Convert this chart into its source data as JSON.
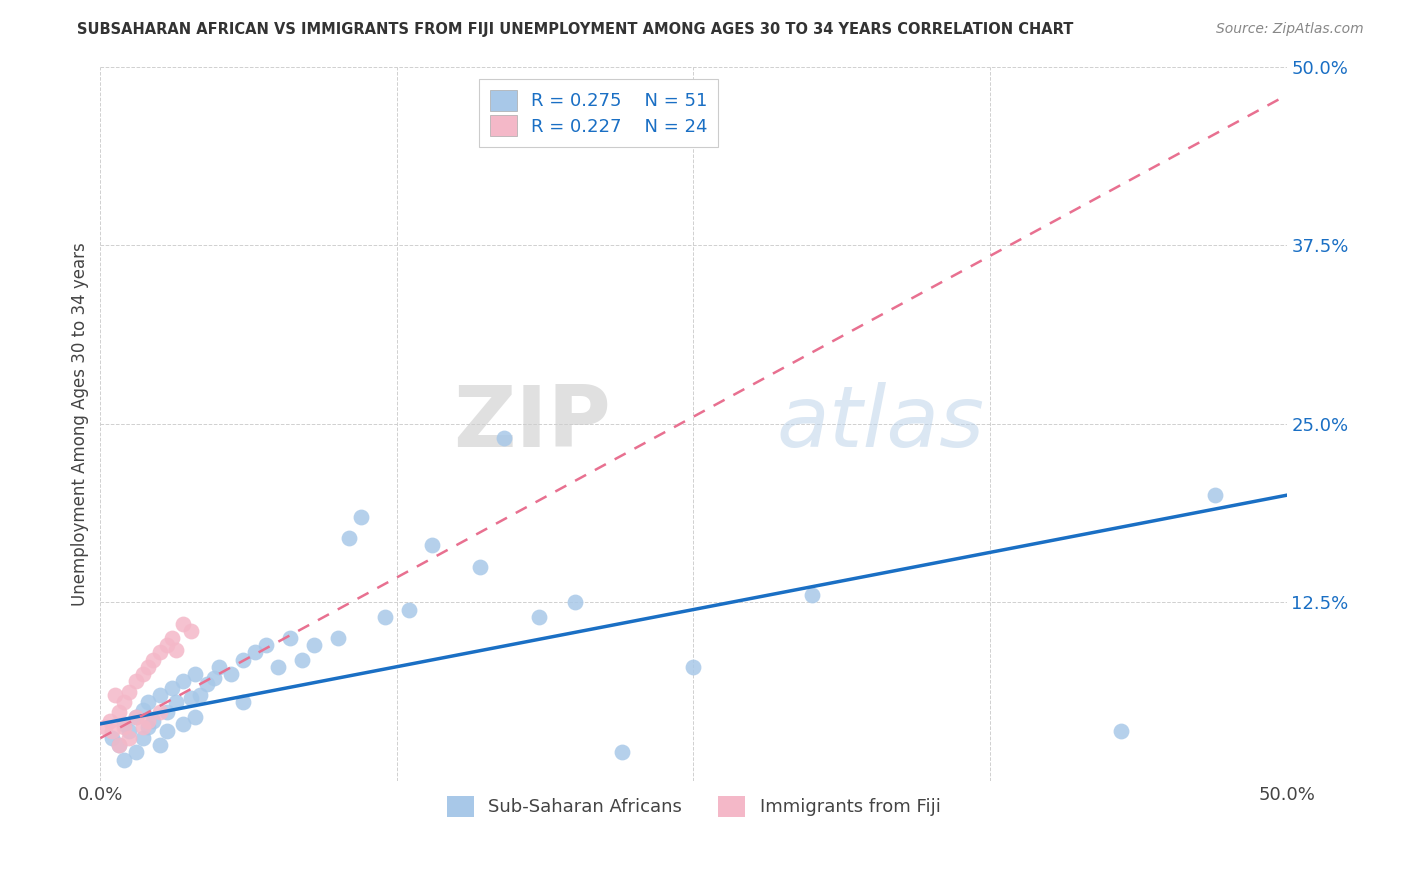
{
  "title": "SUBSAHARAN AFRICAN VS IMMIGRANTS FROM FIJI UNEMPLOYMENT AMONG AGES 30 TO 34 YEARS CORRELATION CHART",
  "source": "Source: ZipAtlas.com",
  "ylabel": "Unemployment Among Ages 30 to 34 years",
  "xlim": [
    0.0,
    0.5
  ],
  "ylim": [
    0.0,
    0.5
  ],
  "xticks": [
    0.0,
    0.125,
    0.25,
    0.375,
    0.5
  ],
  "yticks": [
    0.0,
    0.125,
    0.25,
    0.375,
    0.5
  ],
  "xticklabels": [
    "0.0%",
    "",
    "",
    "",
    "50.0%"
  ],
  "yticklabels": [
    "",
    "12.5%",
    "25.0%",
    "37.5%",
    "50.0%"
  ],
  "blue_R": 0.275,
  "blue_N": 51,
  "pink_R": 0.227,
  "pink_N": 24,
  "blue_color": "#a8c8e8",
  "pink_color": "#f4b8c8",
  "blue_line_color": "#1a6fc4",
  "pink_line_color": "#e87090",
  "legend_label_blue": "Sub-Saharan Africans",
  "legend_label_pink": "Immigrants from Fiji",
  "watermark_zip": "ZIP",
  "watermark_atlas": "atlas",
  "background_color": "#ffffff",
  "grid_color": "#d0d0d0",
  "blue_x": [
    0.005,
    0.008,
    0.01,
    0.01,
    0.012,
    0.015,
    0.015,
    0.018,
    0.018,
    0.02,
    0.02,
    0.022,
    0.025,
    0.025,
    0.028,
    0.028,
    0.03,
    0.032,
    0.035,
    0.035,
    0.038,
    0.04,
    0.04,
    0.042,
    0.045,
    0.048,
    0.05,
    0.055,
    0.06,
    0.06,
    0.065,
    0.07,
    0.075,
    0.08,
    0.085,
    0.09,
    0.1,
    0.105,
    0.11,
    0.12,
    0.13,
    0.14,
    0.16,
    0.17,
    0.185,
    0.2,
    0.22,
    0.25,
    0.3,
    0.43,
    0.47
  ],
  "blue_y": [
    0.03,
    0.025,
    0.04,
    0.015,
    0.035,
    0.045,
    0.02,
    0.05,
    0.03,
    0.055,
    0.038,
    0.042,
    0.06,
    0.025,
    0.048,
    0.035,
    0.065,
    0.055,
    0.07,
    0.04,
    0.058,
    0.075,
    0.045,
    0.06,
    0.068,
    0.072,
    0.08,
    0.075,
    0.085,
    0.055,
    0.09,
    0.095,
    0.08,
    0.1,
    0.085,
    0.095,
    0.1,
    0.17,
    0.185,
    0.115,
    0.12,
    0.165,
    0.15,
    0.24,
    0.115,
    0.125,
    0.02,
    0.08,
    0.13,
    0.035,
    0.2
  ],
  "pink_x": [
    0.002,
    0.004,
    0.005,
    0.006,
    0.008,
    0.008,
    0.01,
    0.01,
    0.012,
    0.012,
    0.015,
    0.015,
    0.018,
    0.018,
    0.02,
    0.02,
    0.022,
    0.025,
    0.025,
    0.028,
    0.03,
    0.032,
    0.035,
    0.038
  ],
  "pink_y": [
    0.038,
    0.042,
    0.035,
    0.06,
    0.048,
    0.025,
    0.055,
    0.038,
    0.062,
    0.03,
    0.07,
    0.045,
    0.075,
    0.038,
    0.08,
    0.042,
    0.085,
    0.09,
    0.048,
    0.095,
    0.1,
    0.092,
    0.11,
    0.105
  ],
  "blue_line_x0": 0.0,
  "blue_line_y0": 0.04,
  "blue_line_x1": 0.5,
  "blue_line_y1": 0.2,
  "pink_line_x0": 0.0,
  "pink_line_y0": 0.03,
  "pink_line_x1": 0.5,
  "pink_line_y1": 0.48
}
